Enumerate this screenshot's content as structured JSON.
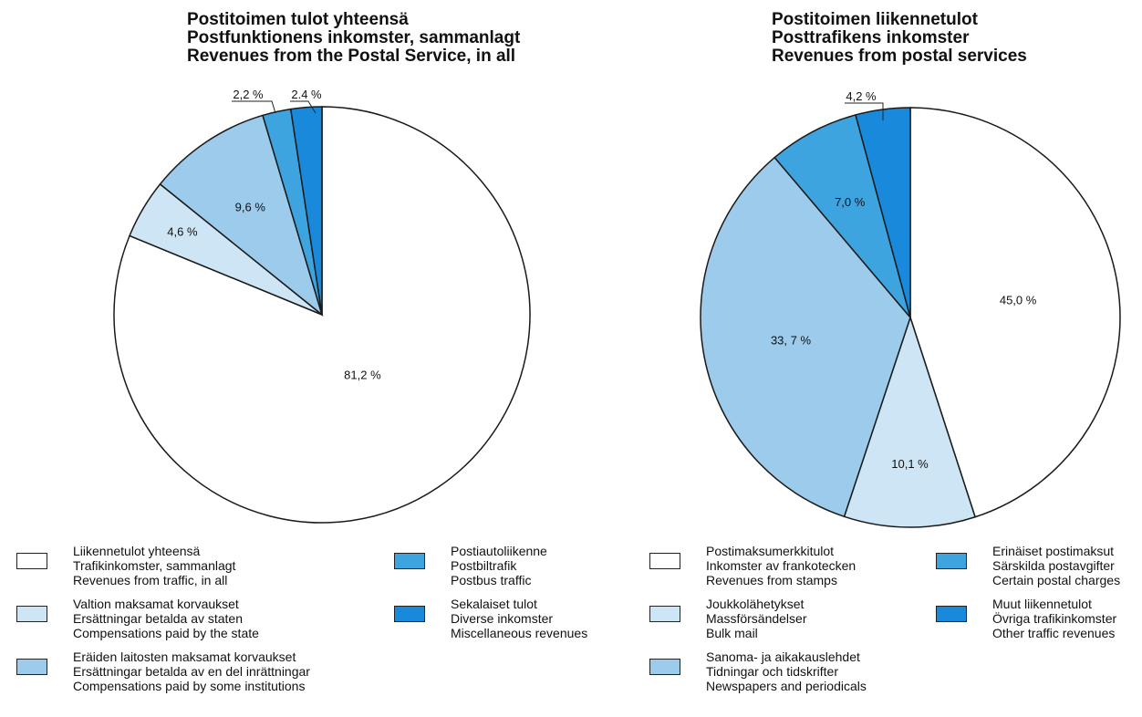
{
  "colors": {
    "white": "#ffffff",
    "light": "#cde5f4",
    "medium": "#9ccbec",
    "accent": "#3ea4e0",
    "dark": "#1989dc"
  },
  "chart_data": [
    {
      "type": "pie",
      "title": [
        "Postitoimen tulot yhteensä",
        "Postfunktionens inkomster, sammanlagt",
        "Revenues from the Postal Service, in all"
      ],
      "slices": [
        {
          "label": "81,2 %",
          "value": 81.2,
          "color": "white",
          "legend": [
            "Liikennetulot yhteensä",
            "Trafikinkomster, sammanlagt",
            "Revenues from traffic, in all"
          ]
        },
        {
          "label": "4,6 %",
          "value": 4.6,
          "color": "light",
          "legend": [
            "Valtion maksamat korvaukset",
            "Ersättningar betalda av staten",
            "Compensations paid by the state"
          ]
        },
        {
          "label": "9,6 %",
          "value": 9.6,
          "color": "medium",
          "legend": [
            "Eräiden laitosten maksamat korvaukset",
            "Ersättningar betalda av en del inrättningar",
            "Compensations paid by some institutions"
          ]
        },
        {
          "label": "2,2 %",
          "value": 2.2,
          "color": "accent",
          "legend": [
            "Postiautoliikenne",
            "Postbiltrafik",
            "Postbus traffic"
          ]
        },
        {
          "label": "2.4 %",
          "value": 2.4,
          "color": "dark",
          "legend": [
            "Sekalaiset tulot",
            "Diverse inkomster",
            "Miscellaneous revenues"
          ]
        }
      ]
    },
    {
      "type": "pie",
      "title": [
        "Postitoimen liikennetulot",
        "Posttrafikens inkomster",
        "Revenues from postal services"
      ],
      "slices": [
        {
          "label": "45,0 %",
          "value": 45.0,
          "color": "white",
          "legend": [
            "Postimaksumerkkitulot",
            "Inkomster av frankotecken",
            "Revenues from stamps"
          ]
        },
        {
          "label": "10,1 %",
          "value": 10.1,
          "color": "light",
          "legend": [
            "Joukkolähetykset",
            "Massförsändelser",
            "Bulk mail"
          ]
        },
        {
          "label": "33, 7 %",
          "value": 33.7,
          "color": "medium",
          "legend": [
            "Sanoma- ja aikakauslehdet",
            "Tidningar och tidskrifter",
            "Newspapers and periodicals"
          ]
        },
        {
          "label": "7,0 %",
          "value": 7.0,
          "color": "accent",
          "legend": [
            "Erinäiset postimaksut",
            "Särskilda postavgifter",
            "Certain postal charges"
          ]
        },
        {
          "label": "4,2 %",
          "value": 4.2,
          "color": "dark",
          "legend": [
            "Muut liikennetulot",
            "Övriga trafikinkomster",
            "Other traffic revenues"
          ]
        }
      ]
    }
  ]
}
